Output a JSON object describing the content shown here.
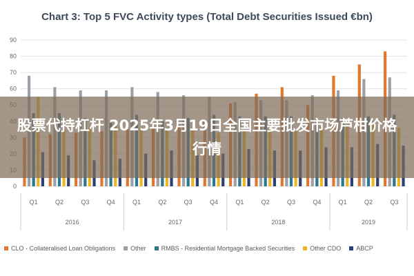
{
  "banner": {
    "text": "股票代持杠杆 2025年3月19日全国主要批发市场芦柑价格行情"
  },
  "chart_data": {
    "type": "bar",
    "title": "Chart 3: Top 5 FVC Activity types (Total Debt Securities Issued €bn)",
    "ylim": [
      0,
      90
    ],
    "yticks": [
      0,
      10,
      20,
      30,
      40,
      50,
      60,
      70,
      80,
      90
    ],
    "grid": true,
    "legend_position": "bottom",
    "categories": [
      "Q1",
      "Q2",
      "Q3",
      "Q4",
      "Q1",
      "Q2",
      "Q3",
      "Q4",
      "Q1",
      "Q2",
      "Q3",
      "Q4",
      "Q1",
      "Q2",
      "Q3"
    ],
    "years": [
      {
        "label": "2016",
        "count": 4
      },
      {
        "label": "2017",
        "count": 4
      },
      {
        "label": "2018",
        "count": 4
      },
      {
        "label": "2019",
        "count": 3
      }
    ],
    "series": [
      {
        "name": "CLO - Collateralised Loan Obligations",
        "color": "#e2772e",
        "values": [
          30,
          32,
          33,
          34,
          35,
          36,
          38,
          40,
          51,
          57,
          61,
          50,
          68,
          75,
          83
        ]
      },
      {
        "name": "Other",
        "color": "#9aa1a8",
        "values": [
          68,
          61,
          59,
          59,
          61,
          58,
          56,
          55,
          52,
          53,
          53,
          56,
          59,
          66,
          67
        ]
      },
      {
        "name": "RMBS - Residential Mortgage Backed Securities",
        "color": "#2e7590",
        "values": [
          45,
          45,
          42,
          39,
          44,
          40,
          42,
          44,
          43,
          43,
          43,
          41,
          42,
          43,
          44
        ]
      },
      {
        "name": "Other CDO",
        "color": "#f0b323",
        "values": [
          55,
          35,
          36,
          37,
          36,
          35,
          36,
          33,
          34,
          35,
          34,
          37,
          38,
          38,
          36
        ]
      },
      {
        "name": "ABCP",
        "color": "#2d3f6e",
        "values": [
          21,
          19,
          16,
          17,
          20,
          22,
          19,
          20,
          23,
          22,
          22,
          24,
          24,
          26,
          25
        ]
      }
    ]
  }
}
